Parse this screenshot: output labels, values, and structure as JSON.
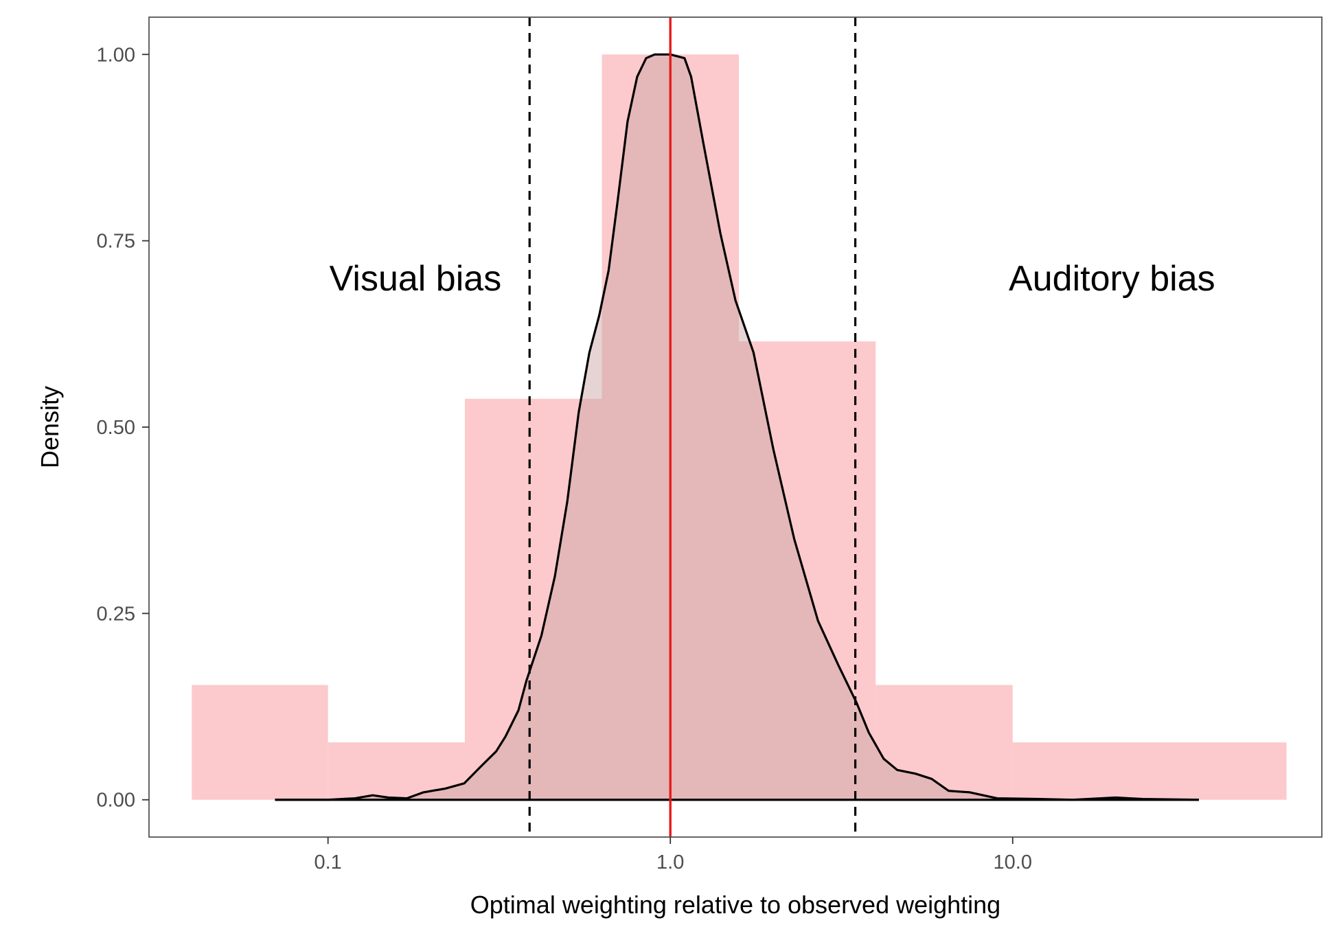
{
  "chart_data": {
    "type": "histogram+density",
    "title": "",
    "xlabel": "Optimal weighting relative to observed weighting",
    "ylabel": "Density",
    "x_scale": "log10",
    "xlim": [
      0.03,
      80
    ],
    "ylim": [
      -0.05,
      1.05
    ],
    "x_ticks": [
      {
        "value": 0.1,
        "label": "0.1"
      },
      {
        "value": 1.0,
        "label": "1.0"
      },
      {
        "value": 10.0,
        "label": "10.0"
      }
    ],
    "y_ticks": [
      {
        "value": 0.0,
        "label": "0.00"
      },
      {
        "value": 0.25,
        "label": "0.25"
      },
      {
        "value": 0.5,
        "label": "0.50"
      },
      {
        "value": 0.75,
        "label": "0.75"
      },
      {
        "value": 1.0,
        "label": "1.00"
      }
    ],
    "histogram": {
      "color": "#fccacc",
      "bins": [
        {
          "x0": 0.04,
          "x1": 0.1,
          "value": 0.154
        },
        {
          "x0": 0.1,
          "x1": 0.251,
          "value": 0.077
        },
        {
          "x0": 0.251,
          "x1": 0.631,
          "value": 0.538
        },
        {
          "x0": 0.631,
          "x1": 1.585,
          "value": 1.0
        },
        {
          "x0": 1.585,
          "x1": 3.98,
          "value": 0.615
        },
        {
          "x0": 3.98,
          "x1": 10.0,
          "value": 0.154
        },
        {
          "x0": 10.0,
          "x1": 63.1,
          "value": 0.077
        }
      ]
    },
    "density": {
      "line_color": "#000000",
      "fill_color": "#c8a0a0",
      "points": [
        [
          0.07,
          0.0
        ],
        [
          0.1,
          0.0
        ],
        [
          0.12,
          0.002
        ],
        [
          0.135,
          0.006
        ],
        [
          0.15,
          0.003
        ],
        [
          0.17,
          0.002
        ],
        [
          0.19,
          0.01
        ],
        [
          0.22,
          0.015
        ],
        [
          0.25,
          0.022
        ],
        [
          0.28,
          0.045
        ],
        [
          0.31,
          0.065
        ],
        [
          0.33,
          0.085
        ],
        [
          0.36,
          0.12
        ],
        [
          0.38,
          0.16
        ],
        [
          0.42,
          0.22
        ],
        [
          0.46,
          0.3
        ],
        [
          0.5,
          0.4
        ],
        [
          0.54,
          0.52
        ],
        [
          0.58,
          0.6
        ],
        [
          0.62,
          0.65
        ],
        [
          0.66,
          0.71
        ],
        [
          0.7,
          0.8
        ],
        [
          0.75,
          0.91
        ],
        [
          0.8,
          0.97
        ],
        [
          0.85,
          0.995
        ],
        [
          0.9,
          1.0
        ],
        [
          1.0,
          1.0
        ],
        [
          1.1,
          0.995
        ],
        [
          1.15,
          0.97
        ],
        [
          1.25,
          0.88
        ],
        [
          1.4,
          0.76
        ],
        [
          1.55,
          0.67
        ],
        [
          1.75,
          0.6
        ],
        [
          2.0,
          0.47
        ],
        [
          2.3,
          0.35
        ],
        [
          2.7,
          0.24
        ],
        [
          3.1,
          0.18
        ],
        [
          3.5,
          0.13
        ],
        [
          3.8,
          0.09
        ],
        [
          4.2,
          0.055
        ],
        [
          4.6,
          0.04
        ],
        [
          5.2,
          0.035
        ],
        [
          5.8,
          0.028
        ],
        [
          6.5,
          0.012
        ],
        [
          7.5,
          0.01
        ],
        [
          9.0,
          0.002
        ],
        [
          12.0,
          0.001
        ],
        [
          15.0,
          0.0
        ],
        [
          20.0,
          0.003
        ],
        [
          24.0,
          0.001
        ],
        [
          35.0,
          0.0
        ]
      ]
    },
    "reference_lines": [
      {
        "x": 1.0,
        "color": "#e41a1c",
        "style": "solid"
      },
      {
        "x": 0.388,
        "color": "#000000",
        "style": "dashed"
      },
      {
        "x": 3.47,
        "color": "#000000",
        "style": "dashed"
      }
    ],
    "annotations": [
      {
        "text": "Visual bias",
        "x": 0.18,
        "y": 0.7
      },
      {
        "text": "Auditory bias",
        "x": 19.5,
        "y": 0.7
      }
    ],
    "grid": false
  }
}
